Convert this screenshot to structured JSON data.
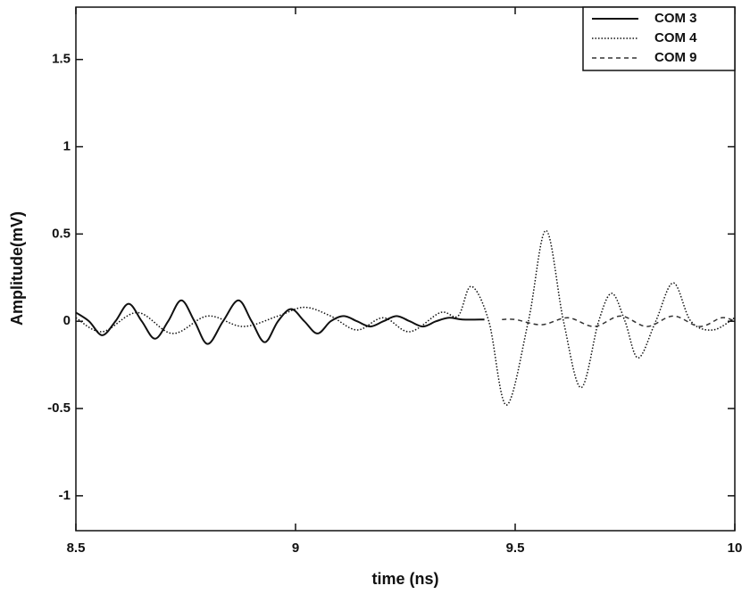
{
  "chart_data": {
    "type": "line",
    "xlabel": "time (ns)",
    "ylabel": "Amplitude(mV)",
    "xlim": [
      8.5,
      10
    ],
    "xticks": [
      8.5,
      9,
      9.5,
      10
    ],
    "ylim": [
      -1.2,
      1.8
    ],
    "yticks": [
      -1,
      -0.5,
      0,
      0.5,
      1,
      1.5
    ],
    "legend": "upper right",
    "series": [
      {
        "name": "COM 3",
        "color": "#111111",
        "style": "solid",
        "x": [
          8.5,
          8.53,
          8.56,
          8.59,
          8.62,
          8.65,
          8.68,
          8.71,
          8.74,
          8.77,
          8.8,
          8.835,
          8.87,
          8.9,
          8.93,
          8.96,
          8.99,
          9.02,
          9.05,
          9.08,
          9.11,
          9.14,
          9.17,
          9.2,
          9.23,
          9.26,
          9.29,
          9.32,
          9.35,
          9.38,
          9.43
        ],
        "values": [
          0.05,
          0,
          -0.08,
          0,
          0.1,
          0,
          -0.1,
          0,
          0.12,
          0,
          -0.13,
          0,
          0.12,
          0,
          -0.12,
          0,
          0.07,
          0,
          -0.07,
          0,
          0.03,
          0,
          -0.03,
          0,
          0.03,
          0,
          -0.03,
          0,
          0.02,
          0.01,
          0.01
        ]
      },
      {
        "name": "COM 4",
        "color": "#111111",
        "style": "dotted",
        "x": [
          8.5,
          8.56,
          8.64,
          8.72,
          8.8,
          8.88,
          8.96,
          9.02,
          9.08,
          9.14,
          9.2,
          9.26,
          9.33,
          9.37,
          9.4,
          9.44,
          9.48,
          9.53,
          9.57,
          9.61,
          9.65,
          9.69,
          9.72,
          9.75,
          9.78,
          9.82,
          9.86,
          9.9,
          9.95,
          10
        ],
        "values": [
          0.02,
          -0.06,
          0.05,
          -0.07,
          0.03,
          -0.03,
          0.03,
          0.08,
          0.03,
          -0.05,
          0.02,
          -0.06,
          0.05,
          0.03,
          0.2,
          0,
          -0.48,
          0,
          0.52,
          0,
          -0.38,
          0,
          0.16,
          0,
          -0.21,
          0,
          0.22,
          0,
          -0.05,
          0.02
        ]
      },
      {
        "name": "COM 9",
        "color": "#333333",
        "style": "dashed",
        "x": [
          9.47,
          9.5,
          9.56,
          9.62,
          9.68,
          9.74,
          9.8,
          9.86,
          9.92,
          9.97,
          10
        ],
        "values": [
          0.01,
          0.01,
          -0.02,
          0.02,
          -0.03,
          0.03,
          -0.03,
          0.03,
          -0.03,
          0.02,
          0
        ]
      }
    ]
  }
}
